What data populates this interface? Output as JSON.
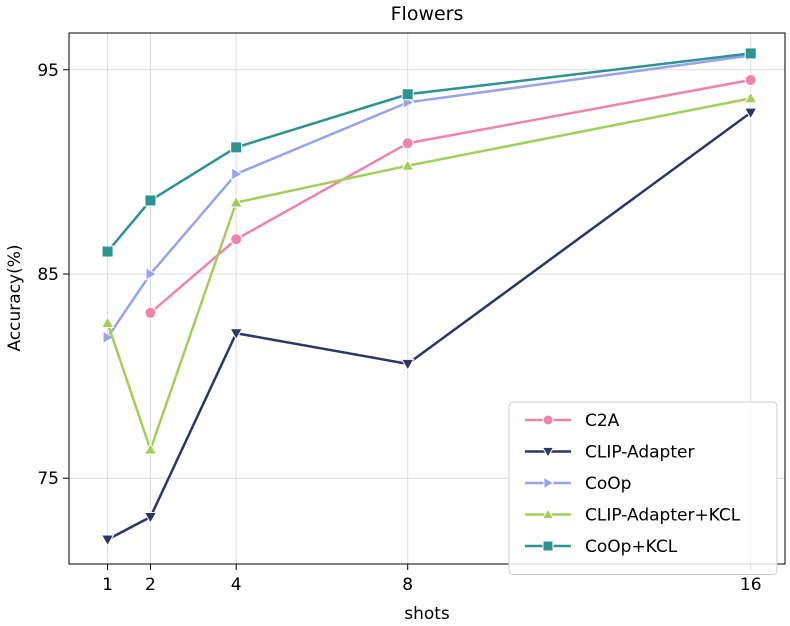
{
  "chart_data": {
    "type": "line",
    "title": "Flowers",
    "xlabel": "shots",
    "ylabel": "Accuracy(%)",
    "x": [
      1,
      2,
      4,
      8,
      16
    ],
    "x_ticks": [
      1,
      2,
      4,
      8,
      16
    ],
    "x_tick_labels": [
      "1",
      "2",
      "4",
      "8",
      "16"
    ],
    "xlim": [
      0.1,
      16.8
    ],
    "y_ticks": [
      75,
      85,
      95
    ],
    "y_tick_labels": [
      "75",
      "85",
      "95"
    ],
    "ylim": [
      70.8,
      96.8
    ],
    "grid": true,
    "legend_position": "lower-right",
    "series": [
      {
        "name": "C2A",
        "color": "#f082ae",
        "marker": "circle",
        "x": [
          2,
          4,
          8,
          16
        ],
        "values": [
          83.1,
          86.7,
          91.4,
          94.5
        ]
      },
      {
        "name": "CLIP-Adapter",
        "color": "#2d3568",
        "marker": "triangle-down",
        "x": [
          1,
          2,
          4,
          8,
          16
        ],
        "values": [
          72.0,
          73.1,
          82.1,
          80.6,
          92.9
        ]
      },
      {
        "name": "CoOp",
        "color": "#99a2ee",
        "marker": "triangle-right",
        "x": [
          1,
          2,
          4,
          8,
          16
        ],
        "values": [
          81.9,
          85.0,
          89.9,
          93.4,
          95.7
        ]
      },
      {
        "name": "CLIP-Adapter+KCL",
        "color": "#a2ce5a",
        "marker": "triangle-up",
        "x": [
          1,
          2,
          4,
          8,
          16
        ],
        "values": [
          82.6,
          76.4,
          88.5,
          90.3,
          93.6
        ]
      },
      {
        "name": "CoOp+KCL",
        "color": "#2b9390",
        "marker": "square",
        "x": [
          1,
          2,
          4,
          8,
          16
        ],
        "values": [
          86.1,
          88.6,
          91.2,
          93.8,
          95.8
        ]
      }
    ]
  }
}
